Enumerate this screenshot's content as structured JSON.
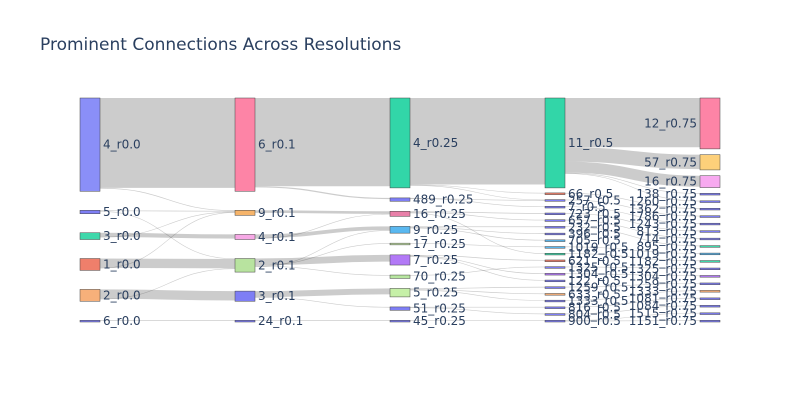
{
  "chart_data": {
    "type": "sankey",
    "title": "Prominent Connections Across Resolutions",
    "link_color": "#cccccc",
    "columns": [
      {
        "resolution": "r0.0",
        "nodes": [
          {
            "id": "4_r0.0",
            "label": "4_r0.0",
            "color": "#8a8ff8",
            "size": 55
          },
          {
            "id": "5_r0.0",
            "label": "5_r0.0",
            "color": "#7e7ef5",
            "size": 2
          },
          {
            "id": "3_r0.0",
            "label": "3_r0.0",
            "color": "#3fd8ab",
            "size": 4
          },
          {
            "id": "1_r0.0",
            "label": "1_r0.0",
            "color": "#ef7f6b",
            "size": 7
          },
          {
            "id": "2_r0.0",
            "label": "2_r0.0",
            "color": "#f7b07a",
            "size": 7
          },
          {
            "id": "6_r0.0",
            "label": "6_r0.0",
            "color": "#7e7ef5",
            "size": 1
          }
        ]
      },
      {
        "resolution": "r0.1",
        "nodes": [
          {
            "id": "6_r0.1",
            "label": "6_r0.1",
            "color": "#fd84a6",
            "size": 55
          },
          {
            "id": "9_r0.1",
            "label": "9_r0.1",
            "color": "#f6b46a",
            "size": 3
          },
          {
            "id": "4_r0.1",
            "label": "4_r0.1",
            "color": "#f7a9e6",
            "size": 3
          },
          {
            "id": "2_r0.1",
            "label": "2_r0.1",
            "color": "#b8e39f",
            "size": 8
          },
          {
            "id": "3_r0.1",
            "label": "3_r0.1",
            "color": "#7e7ef5",
            "size": 6
          },
          {
            "id": "24_r0.1",
            "label": "24_r0.1",
            "color": "#7e7ef5",
            "size": 1
          }
        ]
      },
      {
        "resolution": "r0.25",
        "nodes": [
          {
            "id": "4_r0.25",
            "label": "4_r0.25",
            "color": "#32d6a8",
            "size": 53
          },
          {
            "id": "489_r0.25",
            "label": "489_r0.25",
            "color": "#7e7ef5",
            "size": 2
          },
          {
            "id": "16_r0.25",
            "label": "16_r0.25",
            "color": "#e87fa8",
            "size": 3
          },
          {
            "id": "9_r0.25",
            "label": "9_r0.25",
            "color": "#5ab8f0",
            "size": 4
          },
          {
            "id": "17_r0.25",
            "label": "17_r0.25",
            "color": "#c6e6a8",
            "size": 1
          },
          {
            "id": "7_r0.25",
            "label": "7_r0.25",
            "color": "#b279f6",
            "size": 6
          },
          {
            "id": "70_r0.25",
            "label": "70_r0.25",
            "color": "#b7e6a0",
            "size": 2
          },
          {
            "id": "5_r0.25",
            "label": "5_r0.25",
            "color": "#c6f0a8",
            "size": 5
          },
          {
            "id": "51_r0.25",
            "label": "51_r0.25",
            "color": "#7e7ef5",
            "size": 2
          },
          {
            "id": "45_r0.25",
            "label": "45_r0.25",
            "color": "#7e7ef5",
            "size": 1
          }
        ]
      },
      {
        "resolution": "r0.5",
        "nodes": [
          {
            "id": "11_r0.5",
            "label": "11_r0.5",
            "color": "#32d6a8",
            "size": 53
          },
          {
            "id": "66_r0.5",
            "label": "66_r0.5",
            "color": "#ef7f6b",
            "size": 1
          },
          {
            "id": "257_r0.5",
            "label": "257_r0.5",
            "color": "#7e7ef5",
            "size": 1
          },
          {
            "id": "7_r0.5",
            "label": "7_r0.5",
            "color": "#7e7ef5",
            "size": 1
          },
          {
            "id": "723_r0.5",
            "label": "723_r0.5",
            "color": "#7e7ef5",
            "size": 1
          },
          {
            "id": "657_r0.5",
            "label": "657_r0.5",
            "color": "#7e7ef5",
            "size": 1
          },
          {
            "id": "232_r0.5",
            "label": "232_r0.5",
            "color": "#7e7ef5",
            "size": 1
          },
          {
            "id": "396_r0.5",
            "label": "396_r0.5",
            "color": "#7e7ef5",
            "size": 1
          },
          {
            "id": "705_r0.5",
            "label": "705_r0.5",
            "color": "#5ab8f0",
            "size": 1
          },
          {
            "id": "1019_r0.5",
            "label": "1019_r0.5",
            "color": "#5ab8f0",
            "size": 1
          },
          {
            "id": "1182_r0.5",
            "label": "1182_r0.5",
            "color": "#3fd8ab",
            "size": 1
          },
          {
            "id": "621_r0.5",
            "label": "621_r0.5",
            "color": "#ef7f6b",
            "size": 1
          },
          {
            "id": "1325_r0.5",
            "label": "1325_r0.5",
            "color": "#7e7ef5",
            "size": 1
          },
          {
            "id": "1304_r0.5",
            "label": "1304_r0.5",
            "color": "#b279f6",
            "size": 1
          },
          {
            "id": "122_r0.5",
            "label": "122_r0.5",
            "color": "#7e7ef5",
            "size": 1
          },
          {
            "id": "1259_r0.5",
            "label": "1259_r0.5",
            "color": "#7e7ef5",
            "size": 1
          },
          {
            "id": "633_r0.5",
            "label": "633_r0.5",
            "color": "#f7b07a",
            "size": 1
          },
          {
            "id": "1333_r0.5",
            "label": "1333_r0.5",
            "color": "#7e7ef5",
            "size": 1
          },
          {
            "id": "816_r0.5",
            "label": "816_r0.5",
            "color": "#7e7ef5",
            "size": 1
          },
          {
            "id": "804_r0.5",
            "label": "804_r0.5",
            "color": "#7e7ef5",
            "size": 1
          },
          {
            "id": "900_r0.5",
            "label": "900_r0.5",
            "color": "#7e7ef5",
            "size": 1
          }
        ]
      },
      {
        "resolution": "r0.75",
        "nodes": [
          {
            "id": "12_r0.75",
            "label": "12_r0.75",
            "color": "#fd84a6",
            "size": 30
          },
          {
            "id": "57_r0.75",
            "label": "57_r0.75",
            "color": "#fdd07a",
            "size": 9
          },
          {
            "id": "16_r0.75",
            "label": "16_r0.75",
            "color": "#f7a9f0",
            "size": 7
          },
          {
            "id": "138_r0.75",
            "label": "138_r0.75",
            "color": "#7e7ef5",
            "size": 1
          },
          {
            "id": "1260_r0.75",
            "label": "1260_r0.75",
            "color": "#7e7ef5",
            "size": 1
          },
          {
            "id": "1362_r0.75",
            "label": "1362_r0.75",
            "color": "#7e7ef5",
            "size": 1
          },
          {
            "id": "1786_r0.75",
            "label": "1786_r0.75",
            "color": "#7e7ef5",
            "size": 1
          },
          {
            "id": "1243_r0.75",
            "label": "1243_r0.75",
            "color": "#7e7ef5",
            "size": 1
          },
          {
            "id": "813_r0.75",
            "label": "813_r0.75",
            "color": "#7e7ef5",
            "size": 1
          },
          {
            "id": "714_r0.75",
            "label": "714_r0.75",
            "color": "#7e7ef5",
            "size": 1
          },
          {
            "id": "895_r0.75",
            "label": "895_r0.75",
            "color": "#3fd8ab",
            "size": 1
          },
          {
            "id": "1019_r0.75",
            "label": "1019_r0.75",
            "color": "#5ab8f0",
            "size": 1
          },
          {
            "id": "1182_r0.75",
            "label": "1182_r0.75",
            "color": "#3fd8ab",
            "size": 1
          },
          {
            "id": "1325_r0.75",
            "label": "1325_r0.75",
            "color": "#7e7ef5",
            "size": 1
          },
          {
            "id": "1304_r0.75",
            "label": "1304_r0.75",
            "color": "#b279f6",
            "size": 1
          },
          {
            "id": "1259_r0.75",
            "label": "1259_r0.75",
            "color": "#7e7ef5",
            "size": 1
          },
          {
            "id": "1333_r0.75",
            "label": "1333_r0.75",
            "color": "#f7b07a",
            "size": 1
          },
          {
            "id": "1081_r0.75",
            "label": "1081_r0.75",
            "color": "#7e7ef5",
            "size": 1
          },
          {
            "id": "1084_r0.75",
            "label": "1084_r0.75",
            "color": "#7e7ef5",
            "size": 1
          },
          {
            "id": "1515_r0.75",
            "label": "1515_r0.75",
            "color": "#7e7ef5",
            "size": 1
          },
          {
            "id": "1151_r0.75",
            "label": "1151_r0.75",
            "color": "#7e7ef5",
            "size": 1
          }
        ]
      }
    ],
    "links": [
      {
        "source": "4_r0.0",
        "target": "6_r0.1",
        "value": 53
      },
      {
        "source": "4_r0.0",
        "target": "9_r0.1",
        "value": 0.4
      },
      {
        "source": "5_r0.0",
        "target": "9_r0.1",
        "value": 0.4
      },
      {
        "source": "5_r0.0",
        "target": "2_r0.1",
        "value": 0.3
      },
      {
        "source": "3_r0.0",
        "target": "4_r0.1",
        "value": 2.5
      },
      {
        "source": "3_r0.0",
        "target": "9_r0.1",
        "value": 0.3
      },
      {
        "source": "1_r0.0",
        "target": "2_r0.1",
        "value": 5.5
      },
      {
        "source": "1_r0.0",
        "target": "9_r0.1",
        "value": 0.3
      },
      {
        "source": "2_r0.0",
        "target": "3_r0.1",
        "value": 5.5
      },
      {
        "source": "2_r0.0",
        "target": "2_r0.1",
        "value": 0.3
      },
      {
        "source": "6_r0.0",
        "target": "24_r0.1",
        "value": 0.4
      },
      {
        "source": "6_r0.1",
        "target": "4_r0.25",
        "value": 52
      },
      {
        "source": "6_r0.1",
        "target": "489_r0.25",
        "value": 0.7
      },
      {
        "source": "9_r0.1",
        "target": "16_r0.25",
        "value": 1.5
      },
      {
        "source": "4_r0.1",
        "target": "9_r0.25",
        "value": 2.2
      },
      {
        "source": "4_r0.1",
        "target": "16_r0.25",
        "value": 0.3
      },
      {
        "source": "2_r0.1",
        "target": "7_r0.25",
        "value": 4
      },
      {
        "source": "2_r0.1",
        "target": "17_r0.25",
        "value": 0.3
      },
      {
        "source": "2_r0.1",
        "target": "70_r0.25",
        "value": 0.3
      },
      {
        "source": "2_r0.1",
        "target": "9_r0.25",
        "value": 0.3
      },
      {
        "source": "3_r0.1",
        "target": "5_r0.25",
        "value": 3.5
      },
      {
        "source": "3_r0.1",
        "target": "51_r0.25",
        "value": 0.4
      },
      {
        "source": "24_r0.1",
        "target": "45_r0.25",
        "value": 0.4
      },
      {
        "source": "4_r0.25",
        "target": "11_r0.5",
        "value": 51
      },
      {
        "source": "4_r0.25",
        "target": "66_r0.5",
        "value": 0.3
      },
      {
        "source": "4_r0.25",
        "target": "257_r0.5",
        "value": 0.3
      },
      {
        "source": "489_r0.25",
        "target": "7_r0.5",
        "value": 0.3
      },
      {
        "source": "489_r0.25",
        "target": "257_r0.5",
        "value": 0.3
      },
      {
        "source": "16_r0.25",
        "target": "723_r0.5",
        "value": 0.4
      },
      {
        "source": "16_r0.25",
        "target": "657_r0.5",
        "value": 0.4
      },
      {
        "source": "16_r0.25",
        "target": "1182_r0.5",
        "value": 0.3
      },
      {
        "source": "9_r0.25",
        "target": "232_r0.5",
        "value": 0.4
      },
      {
        "source": "9_r0.25",
        "target": "396_r0.5",
        "value": 0.4
      },
      {
        "source": "9_r0.25",
        "target": "705_r0.5",
        "value": 0.4
      },
      {
        "source": "17_r0.25",
        "target": "1019_r0.5",
        "value": 0.3
      },
      {
        "source": "7_r0.25",
        "target": "621_r0.5",
        "value": 0.4
      },
      {
        "source": "7_r0.25",
        "target": "1304_r0.5",
        "value": 0.4
      },
      {
        "source": "7_r0.25",
        "target": "122_r0.5",
        "value": 0.3
      },
      {
        "source": "70_r0.25",
        "target": "1325_r0.5",
        "value": 0.3
      },
      {
        "source": "5_r0.25",
        "target": "1259_r0.5",
        "value": 0.4
      },
      {
        "source": "5_r0.25",
        "target": "633_r0.5",
        "value": 0.4
      },
      {
        "source": "5_r0.25",
        "target": "1333_r0.5",
        "value": 0.3
      },
      {
        "source": "51_r0.25",
        "target": "816_r0.5",
        "value": 0.3
      },
      {
        "source": "51_r0.25",
        "target": "804_r0.5",
        "value": 0.3
      },
      {
        "source": "45_r0.25",
        "target": "900_r0.5",
        "value": 0.3
      },
      {
        "source": "11_r0.5",
        "target": "12_r0.75",
        "value": 29
      },
      {
        "source": "11_r0.5",
        "target": "57_r0.75",
        "value": 8.5
      },
      {
        "source": "11_r0.5",
        "target": "16_r0.75",
        "value": 6.5
      },
      {
        "source": "11_r0.5",
        "target": "138_r0.75",
        "value": 0.3
      },
      {
        "source": "11_r0.5",
        "target": "1260_r0.75",
        "value": 0.3
      },
      {
        "source": "66_r0.5",
        "target": "1362_r0.75",
        "value": 0.3
      },
      {
        "source": "257_r0.5",
        "target": "1786_r0.75",
        "value": 0.3
      },
      {
        "source": "7_r0.5",
        "target": "1243_r0.75",
        "value": 0.3
      },
      {
        "source": "723_r0.5",
        "target": "813_r0.75",
        "value": 0.3
      },
      {
        "source": "657_r0.5",
        "target": "714_r0.75",
        "value": 0.3
      },
      {
        "source": "232_r0.5",
        "target": "895_r0.75",
        "value": 0.3
      },
      {
        "source": "1019_r0.5",
        "target": "1019_r0.75",
        "value": 0.3
      },
      {
        "source": "1182_r0.5",
        "target": "1182_r0.75",
        "value": 0.3
      },
      {
        "source": "1325_r0.5",
        "target": "1325_r0.75",
        "value": 0.3
      },
      {
        "source": "1304_r0.5",
        "target": "1304_r0.75",
        "value": 0.3
      },
      {
        "source": "1259_r0.5",
        "target": "1259_r0.75",
        "value": 0.3
      },
      {
        "source": "1333_r0.5",
        "target": "1333_r0.75",
        "value": 0.3
      },
      {
        "source": "816_r0.5",
        "target": "1081_r0.75",
        "value": 0.3
      },
      {
        "source": "804_r0.5",
        "target": "1084_r0.75",
        "value": 0.3
      },
      {
        "source": "900_r0.5",
        "target": "1515_r0.75",
        "value": 0.3
      },
      {
        "source": "900_r0.5",
        "target": "1151_r0.75",
        "value": 0.3
      }
    ]
  }
}
